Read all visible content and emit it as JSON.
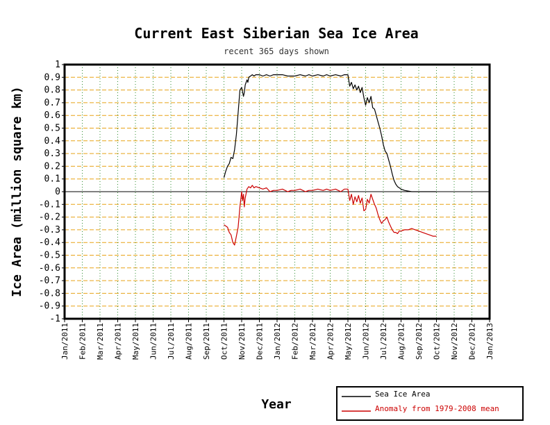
{
  "chart_data": {
    "type": "line",
    "title": "Current East Siberian Sea Ice Area",
    "subtitle": "recent 365 days shown",
    "xlabel": "Year",
    "ylabel": "Ice Area (million square km)",
    "ylim": [
      -1,
      1
    ],
    "y_ticks": [
      "1",
      "0.9",
      "0.8",
      "0.7",
      "0.6",
      "0.5",
      "0.4",
      "0.3",
      "0.2",
      "0.1",
      "0",
      "-0.1",
      "-0.2",
      "-0.3",
      "-0.4",
      "-0.5",
      "-0.6",
      "-0.7",
      "-0.8",
      "-0.9",
      "-1"
    ],
    "x_ticks": [
      "Jan/2011",
      "Feb/2011",
      "Mar/2011",
      "Apr/2011",
      "May/2011",
      "Jun/2011",
      "Jul/2011",
      "Aug/2011",
      "Sep/2011",
      "Oct/2011",
      "Nov/2011",
      "Dec/2011",
      "Jan/2012",
      "Feb/2012",
      "Mar/2012",
      "Apr/2012",
      "May/2012",
      "Jun/2012",
      "Jul/2012",
      "Aug/2012",
      "Sep/2012",
      "Oct/2012",
      "Nov/2012",
      "Dec/2012",
      "Jan/2013"
    ],
    "grid": true,
    "legend_position": "bottom-right",
    "colors": {
      "ice": "#000000",
      "anomaly": "#cc0000",
      "grid_h": "#e8a317",
      "grid_v": "#2e8b2e"
    },
    "series": [
      {
        "name": "Sea Ice Area",
        "color": "#000000",
        "x": [
          9.0,
          9.1,
          9.2,
          9.3,
          9.4,
          9.5,
          9.6,
          9.7,
          9.8,
          9.9,
          10.0,
          10.1,
          10.15,
          10.2,
          10.3,
          10.35,
          10.4,
          10.5,
          10.6,
          10.7,
          10.8,
          11.0,
          11.2,
          11.4,
          11.6,
          11.8,
          12.0,
          12.3,
          12.6,
          12.8,
          13.0,
          13.3,
          13.6,
          13.8,
          14.0,
          14.3,
          14.6,
          14.8,
          15.0,
          15.3,
          15.6,
          15.8,
          16.0,
          16.1,
          16.2,
          16.3,
          16.4,
          16.5,
          16.6,
          16.7,
          16.8,
          16.9,
          17.0,
          17.1,
          17.2,
          17.3,
          17.4,
          17.5,
          17.6,
          17.7,
          17.8,
          17.9,
          18.0,
          18.1,
          18.2,
          18.3,
          18.4,
          18.5,
          18.6,
          18.7,
          18.8,
          18.9,
          19.0,
          19.2,
          19.4,
          19.6,
          19.8,
          20.0,
          20.2,
          20.4,
          20.6,
          20.8,
          21.0
        ],
        "values": [
          0.11,
          0.16,
          0.2,
          0.22,
          0.27,
          0.26,
          0.33,
          0.45,
          0.62,
          0.8,
          0.82,
          0.75,
          0.78,
          0.84,
          0.88,
          0.86,
          0.9,
          0.91,
          0.92,
          0.91,
          0.92,
          0.92,
          0.91,
          0.92,
          0.91,
          0.92,
          0.92,
          0.92,
          0.91,
          0.91,
          0.91,
          0.92,
          0.91,
          0.92,
          0.91,
          0.92,
          0.91,
          0.92,
          0.91,
          0.92,
          0.91,
          0.92,
          0.92,
          0.83,
          0.86,
          0.81,
          0.84,
          0.8,
          0.83,
          0.78,
          0.82,
          0.74,
          0.68,
          0.74,
          0.7,
          0.75,
          0.66,
          0.65,
          0.6,
          0.55,
          0.5,
          0.44,
          0.37,
          0.32,
          0.3,
          0.25,
          0.2,
          0.14,
          0.09,
          0.06,
          0.04,
          0.03,
          0.02,
          0.01,
          0.005,
          0.0,
          0.0,
          0.0,
          0.0,
          0.0,
          0.0,
          0.0,
          0.0
        ]
      },
      {
        "name": "Anomaly from 1979-2008 mean",
        "color": "#cc0000",
        "x": [
          9.0,
          9.1,
          9.2,
          9.3,
          9.4,
          9.5,
          9.6,
          9.7,
          9.8,
          9.9,
          10.0,
          10.05,
          10.1,
          10.15,
          10.2,
          10.3,
          10.4,
          10.5,
          10.6,
          10.7,
          10.8,
          11.0,
          11.2,
          11.4,
          11.6,
          11.8,
          12.0,
          12.3,
          12.6,
          12.8,
          13.0,
          13.3,
          13.6,
          13.8,
          14.0,
          14.3,
          14.6,
          14.8,
          15.0,
          15.3,
          15.6,
          15.8,
          16.0,
          16.1,
          16.2,
          16.3,
          16.4,
          16.5,
          16.6,
          16.7,
          16.8,
          16.9,
          17.0,
          17.1,
          17.2,
          17.3,
          17.4,
          17.5,
          17.6,
          17.7,
          17.8,
          17.9,
          18.0,
          18.1,
          18.2,
          18.3,
          18.4,
          18.5,
          18.6,
          18.7,
          18.8,
          18.9,
          19.0,
          19.2,
          19.4,
          19.6,
          19.8,
          20.0,
          20.2,
          20.4,
          20.6,
          20.8,
          21.0
        ],
        "values": [
          -0.26,
          -0.27,
          -0.28,
          -0.32,
          -0.34,
          -0.4,
          -0.42,
          -0.35,
          -0.28,
          -0.12,
          0.0,
          -0.07,
          -0.02,
          -0.12,
          -0.05,
          0.02,
          0.04,
          0.03,
          0.05,
          0.03,
          0.04,
          0.03,
          0.02,
          0.03,
          0.0,
          0.01,
          0.01,
          0.02,
          0.0,
          0.01,
          0.01,
          0.02,
          0.0,
          0.01,
          0.01,
          0.02,
          0.01,
          0.02,
          0.01,
          0.02,
          0.0,
          0.02,
          0.02,
          -0.07,
          -0.02,
          -0.1,
          -0.04,
          -0.08,
          -0.03,
          -0.09,
          -0.05,
          -0.15,
          -0.14,
          -0.06,
          -0.09,
          -0.02,
          -0.06,
          -0.1,
          -0.13,
          -0.18,
          -0.22,
          -0.25,
          -0.23,
          -0.22,
          -0.2,
          -0.24,
          -0.27,
          -0.3,
          -0.32,
          -0.32,
          -0.33,
          -0.31,
          -0.31,
          -0.3,
          -0.3,
          -0.29,
          -0.3,
          -0.31,
          -0.32,
          -0.33,
          -0.34,
          -0.35,
          -0.35
        ]
      }
    ],
    "zero_line": true
  }
}
